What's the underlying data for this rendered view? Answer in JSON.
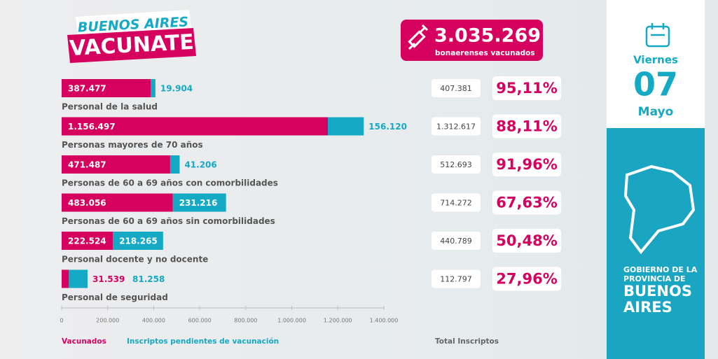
{
  "header": {
    "line1": "BUENOS AIRES",
    "line2": "VACUNATE"
  },
  "headline": {
    "value": 3035269,
    "label": "3.035.269",
    "caption": "bonaerenses vacunados"
  },
  "date": {
    "weekday": "Viernes",
    "day": "07",
    "month": "Mayo"
  },
  "government": {
    "line1": "GOBIERNO DE LA",
    "line2": "PROVINCIA DE",
    "line3": "BUENOS",
    "line4": "AIRES"
  },
  "chart_data": {
    "type": "bar",
    "orientation": "horizontal",
    "stacked": true,
    "categories": [
      "Personal de la salud",
      "Personas mayores de 70 años",
      "Personas de 60 a 69 años con comorbilidades",
      "Personas de 60 a 69 años sin comorbilidades",
      "Personal docente y no docente",
      "Personal de seguridad"
    ],
    "series": [
      {
        "name": "Vacunados",
        "color": "#d6005f",
        "values": [
          387477,
          1156497,
          471487,
          483056,
          222524,
          31539
        ],
        "value_labels": [
          "387.477",
          "1.156.497",
          "471.487",
          "483.056",
          "222.524",
          "31.539"
        ]
      },
      {
        "name": "Inscriptos pendientes  de vacunación",
        "color": "#14a9c4",
        "values": [
          19904,
          156120,
          41206,
          231216,
          218265,
          81258
        ],
        "value_labels": [
          "19.904",
          "156.120",
          "41.206",
          "231.216",
          "218.265",
          "81.258"
        ]
      }
    ],
    "xlim": [
      0,
      1400000
    ],
    "xticks": [
      0,
      {
        "value": 200000,
        "label": "200.000"
      },
      {
        "value": 400000,
        "label": "400.000"
      },
      {
        "value": 600000,
        "label": "600.000"
      },
      {
        "value": 800000,
        "label": "800.000"
      },
      {
        "value": 1000000,
        "label": "1.000.000"
      },
      {
        "value": 1200000,
        "label": "1.200.000"
      },
      {
        "value": 1400000,
        "label": "1.400.000"
      }
    ],
    "totals": {
      "name": "Total Inscriptos",
      "values": [
        407381,
        1312617,
        512693,
        714272,
        440789,
        112797
      ],
      "value_labels": [
        "407.381",
        "1.312.617",
        "512.693",
        "714.272",
        "440.789",
        "112.797"
      ]
    },
    "percentages": {
      "values": [
        95.11,
        88.11,
        91.96,
        67.63,
        50.48,
        27.96
      ],
      "value_labels": [
        "95,11%",
        "88,11%",
        "91,96%",
        "67,63%",
        "50,48%",
        "27,96%"
      ]
    }
  }
}
